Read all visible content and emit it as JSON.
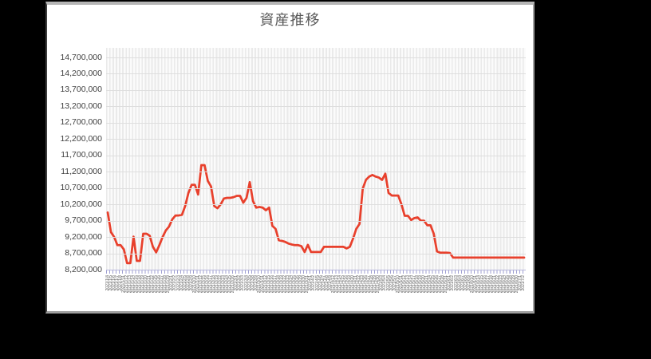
{
  "window": {
    "background_color": "#000000",
    "panel_color": "#ffffff"
  },
  "colors": {
    "series_line": "#e8402c",
    "title_text": "#595959",
    "axis_tick_text": "#3f3f3f",
    "gridline": "#dedede",
    "category_axis": "#9f9fd2"
  },
  "chart_data": {
    "type": "line",
    "title": "資産推移",
    "xlabel": "",
    "ylabel": "",
    "grid": true,
    "legend_position": "none",
    "y_axis": {
      "min": 8200000,
      "max": 15000000,
      "tick_step": 500000,
      "tick_labels": [
        "8,200,000",
        "8,700,000",
        "9,200,000",
        "9,700,000",
        "10,200,000",
        "10,700,000",
        "11,200,000",
        "11,700,000",
        "12,200,000",
        "12,700,000",
        "13,200,000",
        "13,700,000",
        "14,200,000",
        "14,700,000"
      ]
    },
    "x_labels": [
      "2021/1/4",
      "2021/1/5",
      "2021/1/6",
      "2021/1/7",
      "2021/1/8",
      "2021/1/11",
      "2021/1/12",
      "2021/1/13",
      "2021/1/14",
      "2021/1/15",
      "2021/1/18",
      "2021/1/19",
      "2021/1/20",
      "2021/1/21",
      "2021/1/22",
      "2021/1/25",
      "2021/1/26",
      "2021/1/27",
      "2021/1/28",
      "2021/1/29",
      "2021/2/1",
      "2021/2/2",
      "2021/2/3",
      "2021/2/4",
      "2021/2/5",
      "2021/2/8",
      "2021/2/9",
      "2021/2/10",
      "2021/2/11",
      "2021/2/12",
      "2021/2/15",
      "2021/2/16",
      "2021/2/17",
      "2021/2/18",
      "2021/2/19",
      "2021/2/22",
      "2021/2/23",
      "2021/2/24",
      "2021/2/25",
      "2021/2/26",
      "2021/3/1",
      "2021/3/2",
      "2021/3/3",
      "2021/3/4",
      "2021/3/5",
      "2021/3/8",
      "2021/3/9",
      "2021/3/10",
      "2021/3/11",
      "2021/3/12",
      "2021/3/15",
      "2021/3/16",
      "2021/3/17",
      "2021/3/18",
      "2021/3/19",
      "2021/3/22",
      "2021/3/23",
      "2021/3/24",
      "2021/3/25",
      "2021/3/26",
      "2021/3/29",
      "2021/3/30",
      "2021/3/31",
      "2021/4/1",
      "2021/4/2",
      "2021/4/5",
      "2021/4/6",
      "2021/4/7",
      "2021/4/8",
      "2021/4/9",
      "2021/4/12",
      "2021/4/13",
      "2021/4/14",
      "2021/4/15",
      "2021/4/16",
      "2021/4/19",
      "2021/4/20",
      "2021/4/21",
      "2021/4/22",
      "2021/4/23",
      "2021/4/26",
      "2021/4/27",
      "2021/4/28",
      "2021/4/29",
      "2021/4/30",
      "2021/5/3",
      "2021/5/4",
      "2021/5/5",
      "2021/5/6",
      "2021/5/7",
      "2021/5/10",
      "2021/5/11",
      "2021/5/12",
      "2021/5/13",
      "2021/5/14",
      "2021/5/17",
      "2021/5/18",
      "2021/5/19",
      "2021/5/20",
      "2021/5/21",
      "2021/5/24",
      "2021/5/25",
      "2021/5/26",
      "2021/5/27",
      "2021/5/28",
      "2021/5/31",
      "2021/6/1",
      "2021/6/2",
      "2021/6/3",
      "2021/6/4",
      "2021/6/7",
      "2021/6/8",
      "2021/6/9",
      "2021/6/10",
      "2021/6/11",
      "2021/6/14",
      "2021/6/15",
      "2021/6/16",
      "2021/6/17",
      "2021/6/18",
      "2021/6/21",
      "2021/6/22",
      "2021/6/23",
      "2021/6/24",
      "2021/6/25",
      "2021/6/28",
      "2021/6/29",
      "2021/6/30",
      "2021/7/1",
      "2021/7/2"
    ],
    "series": [
      {
        "color": "#e8402c",
        "values": [
          9950000,
          9350000,
          9200000,
          8950000,
          8950000,
          8820000,
          8400000,
          8400000,
          9210000,
          8470000,
          8470000,
          9300000,
          9300000,
          9240000,
          8900000,
          8730000,
          8950000,
          9200000,
          9400000,
          9520000,
          9740000,
          9860000,
          9860000,
          9880000,
          10150000,
          10550000,
          10800000,
          10800000,
          10500000,
          11400000,
          11400000,
          10920000,
          10750000,
          10150000,
          10080000,
          10200000,
          10380000,
          10400000,
          10400000,
          10420000,
          10460000,
          10460000,
          10250000,
          10400000,
          10880000,
          10300000,
          10100000,
          10120000,
          10100000,
          10020000,
          10100000,
          9540000,
          9450000,
          9100000,
          9080000,
          9050000,
          9000000,
          8970000,
          8950000,
          8950000,
          8920000,
          8740000,
          8960000,
          8740000,
          8740000,
          8740000,
          8740000,
          8900000,
          8900000,
          8900000,
          8900000,
          8900000,
          8900000,
          8900000,
          8850000,
          8900000,
          9150000,
          9450000,
          9600000,
          10680000,
          10950000,
          11050000,
          11100000,
          11050000,
          11020000,
          10950000,
          11140000,
          10550000,
          10470000,
          10470000,
          10470000,
          10200000,
          9850000,
          9850000,
          9720000,
          9780000,
          9800000,
          9700000,
          9700000,
          9560000,
          9560000,
          9300000,
          8760000,
          8720000,
          8720000,
          8720000,
          8710000,
          8570000,
          8570000,
          8570000,
          8570000,
          8570000,
          8570000,
          8570000,
          8570000,
          8570000,
          8570000,
          8570000,
          8570000,
          8570000,
          8570000,
          8570000,
          8570000,
          8570000,
          8570000,
          8570000,
          8570000,
          8570000,
          8570000,
          8570000
        ]
      }
    ]
  }
}
